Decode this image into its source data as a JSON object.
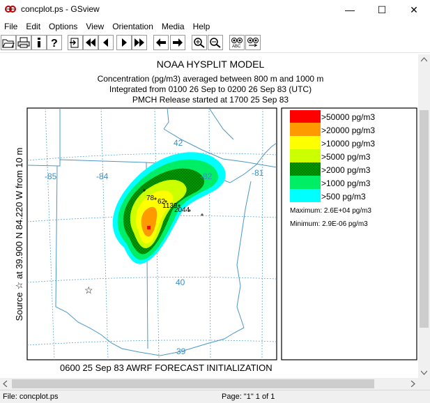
{
  "window": {
    "title": "concplot.ps - GSview",
    "icon": "gsview-app-icon",
    "controls": {
      "minimize": "—",
      "maximize": "☐",
      "close": "✕"
    }
  },
  "menu": [
    "File",
    "Edit",
    "Options",
    "View",
    "Orientation",
    "Media",
    "Help"
  ],
  "toolbar": [
    "open-icon",
    "print-icon",
    "info-icon",
    "help-icon",
    "goto-page-icon",
    "first-page-icon",
    "previous-page-icon",
    "next-page-icon",
    "last-page-icon",
    "back-icon",
    "forward-icon",
    "zoom-in-icon",
    "zoom-out-icon",
    "find-icon",
    "find-next-icon"
  ],
  "plot": {
    "title": "NOAA HYSPLIT MODEL",
    "subtitle1": "Concentration  (pg/m3) averaged between    800 m and  1000 m",
    "subtitle2": "Integrated from 0100 26 Sep to 0200 26 Sep 83 (UTC)",
    "subtitle3": "PMCH Release started at 1700 25 Sep 83",
    "side_label": "Source ☆ at   39.900  N  84.220  W     from   10 m",
    "bottom_label": "0600 25 Sep 83 AWRF FORECAST INITIALIZATION",
    "lon_labels": [
      "-85",
      "-84",
      "-82",
      "-81"
    ],
    "lat_labels": [
      "42",
      "40",
      "39"
    ],
    "point_labels": [
      "78",
      "62",
      "1139",
      "2044"
    ],
    "legend": [
      {
        "label": ">50000 pg/m3",
        "color": "#ff0000"
      },
      {
        "label": ">20000 pg/m3",
        "color": "#ff9900"
      },
      {
        "label": ">10000 pg/m3",
        "color": "#ffff00"
      },
      {
        "label": ">5000 pg/m3",
        "color": "#ccff00"
      },
      {
        "label": ">2000 pg/m3",
        "color": "#009900"
      },
      {
        "label": ">1000 pg/m3",
        "color": "#00ee66"
      },
      {
        "label": ">500 pg/m3",
        "color": "#00ffff"
      }
    ],
    "maximum": "Maximum: 2.6E+04 pg/m3",
    "minimum": "Minimum: 2.9E-06 pg/m3"
  },
  "status": {
    "file": "File: concplot.ps",
    "page": "Page: \"1\"  1 of 1"
  }
}
